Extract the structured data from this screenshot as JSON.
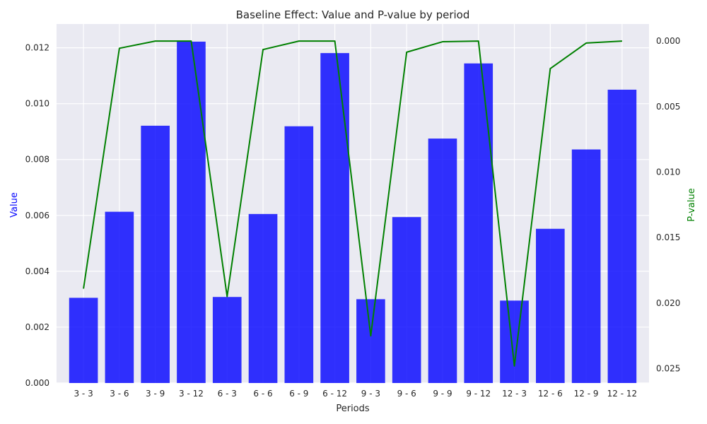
{
  "chart_data": {
    "type": "bar",
    "title": "Baseline Effect: Value and P-value by period",
    "xlabel": "Periods",
    "ylabel": "Value",
    "y2label": "P-value",
    "categories": [
      "3 - 3",
      "3 - 6",
      "3 - 9",
      "3 - 12",
      "6 - 3",
      "6 - 6",
      "6 - 9",
      "6 - 12",
      "9 - 3",
      "9 - 6",
      "9 - 9",
      "9 - 12",
      "12 - 3",
      "12 - 6",
      "12 - 9",
      "12 - 12"
    ],
    "series": [
      {
        "name": "Value",
        "type": "bar",
        "axis": "left",
        "color": "#0000ff",
        "values": [
          0.00305,
          0.00613,
          0.00921,
          0.01222,
          0.00308,
          0.00605,
          0.00919,
          0.01181,
          0.003,
          0.00594,
          0.00875,
          0.01144,
          0.00295,
          0.00552,
          0.00836,
          0.0105
        ]
      },
      {
        "name": "P-value",
        "type": "line",
        "axis": "right",
        "color": "#008000",
        "values": [
          0.0189,
          0.00055,
          0.0,
          0.0,
          0.0195,
          0.00065,
          0.0,
          0.0,
          0.0225,
          0.00085,
          5e-05,
          0.0,
          0.0248,
          0.0021,
          0.00015,
          0.0
        ]
      }
    ],
    "ylim": [
      0,
      0.01285
    ],
    "y2lim": [
      0.0261,
      -0.0013
    ],
    "y2_inverted": true,
    "yticks": [
      "0.000",
      "0.002",
      "0.004",
      "0.006",
      "0.008",
      "0.010",
      "0.012"
    ],
    "y2ticks": [
      "0.000",
      "0.005",
      "0.010",
      "0.015",
      "0.020",
      "0.025"
    ],
    "grid": true,
    "background": "#eaeaf2",
    "axis_label_colors": {
      "left": "#0000ff",
      "right": "#008000"
    }
  }
}
